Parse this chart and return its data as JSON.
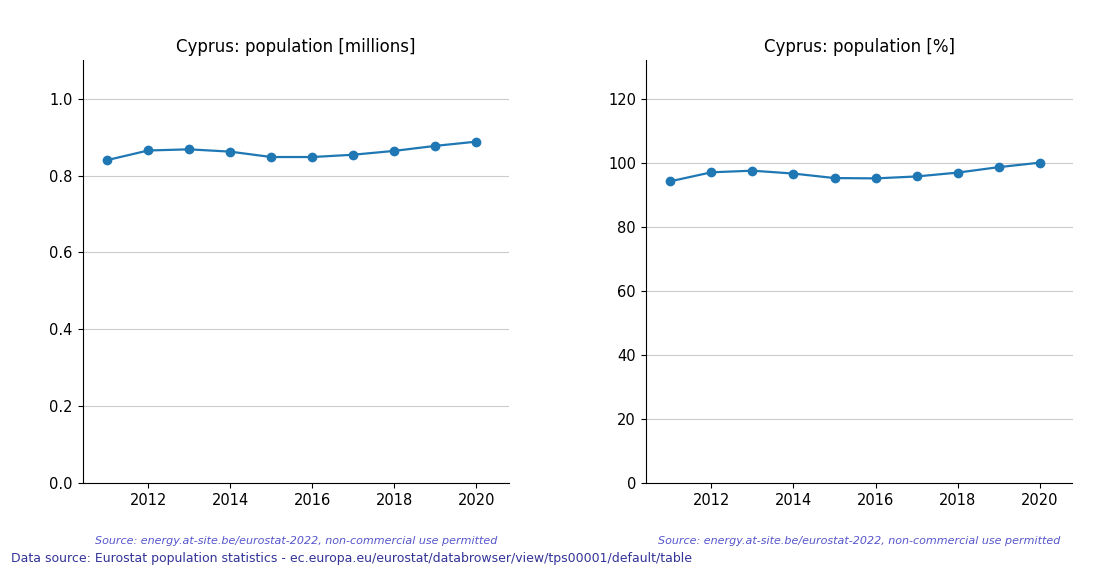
{
  "years": [
    2011,
    2012,
    2013,
    2014,
    2015,
    2016,
    2017,
    2018,
    2019,
    2020
  ],
  "millions": [
    0.84,
    0.865,
    0.868,
    0.862,
    0.848,
    0.848,
    0.854,
    0.864,
    0.877,
    0.888
  ],
  "percent": [
    94.2,
    97.0,
    97.5,
    96.6,
    95.2,
    95.1,
    95.7,
    96.9,
    98.6,
    100.0
  ],
  "title_millions": "Cyprus: population [millions]",
  "title_percent": "Cyprus: population [%]",
  "source_text": "Source: energy.at-site.be/eurostat-2022, non-commercial use permitted",
  "footer_text": "Data source: Eurostat population statistics - ec.europa.eu/eurostat/databrowser/view/tps00001/default/table",
  "line_color": "#1f77b4",
  "source_color": "#5555cc",
  "footer_color": "#333399",
  "ylim_millions": [
    0.0,
    1.1
  ],
  "ylim_percent": [
    0,
    132
  ],
  "yticks_millions": [
    0.0,
    0.2,
    0.4,
    0.6,
    0.8,
    1.0
  ],
  "yticks_percent": [
    0,
    20,
    40,
    60,
    80,
    100,
    120
  ],
  "marker_size": 6,
  "xlim": [
    2010.4,
    2020.8
  ],
  "xticks": [
    2012,
    2014,
    2016,
    2018,
    2020
  ]
}
